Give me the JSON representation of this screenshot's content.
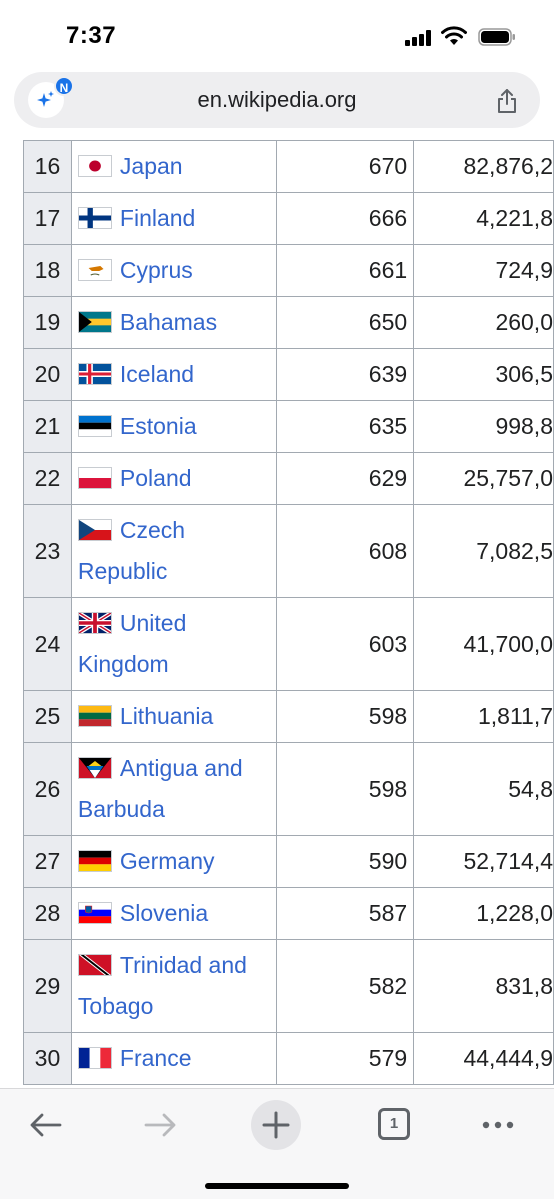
{
  "status": {
    "time": "7:37"
  },
  "browser": {
    "url": "en.wikipedia.org",
    "ai_badge_letter": "N",
    "tab_count": "1"
  },
  "table": {
    "rows": [
      {
        "rank": "16",
        "country": "Japan",
        "flag": "japan-flag-icon",
        "score": "670",
        "population": "82,876,2"
      },
      {
        "rank": "17",
        "country": "Finland",
        "flag": "finland-flag-icon",
        "score": "666",
        "population": "4,221,8"
      },
      {
        "rank": "18",
        "country": "Cyprus",
        "flag": "cyprus-flag-icon",
        "score": "661",
        "population": "724,9"
      },
      {
        "rank": "19",
        "country": "Bahamas",
        "flag": "bahamas-flag-icon",
        "score": "650",
        "population": "260,0"
      },
      {
        "rank": "20",
        "country": "Iceland",
        "flag": "iceland-flag-icon",
        "score": "639",
        "population": "306,5"
      },
      {
        "rank": "21",
        "country": "Estonia",
        "flag": "estonia-flag-icon",
        "score": "635",
        "population": "998,8"
      },
      {
        "rank": "22",
        "country": "Poland",
        "flag": "poland-flag-icon",
        "score": "629",
        "population": "25,757,0"
      },
      {
        "rank": "23",
        "country": "Czech Republic",
        "flag": "czech-republic-flag-icon",
        "score": "608",
        "population": "7,082,5"
      },
      {
        "rank": "24",
        "country": "United Kingdom",
        "flag": "united-kingdom-flag-icon",
        "score": "603",
        "population": "41,700,0"
      },
      {
        "rank": "25",
        "country": "Lithuania",
        "flag": "lithuania-flag-icon",
        "score": "598",
        "population": "1,811,7"
      },
      {
        "rank": "26",
        "country": "Antigua and Barbuda",
        "flag": "antigua-and-barbuda-flag-icon",
        "score": "598",
        "population": "54,8"
      },
      {
        "rank": "27",
        "country": "Germany",
        "flag": "germany-flag-icon",
        "score": "590",
        "population": "52,714,4"
      },
      {
        "rank": "28",
        "country": "Slovenia",
        "flag": "slovenia-flag-icon",
        "score": "587",
        "population": "1,228,0"
      },
      {
        "rank": "29",
        "country": "Trinidad and Tobago",
        "flag": "trinidad-and-tobago-flag-icon",
        "score": "582",
        "population": "831,8"
      },
      {
        "rank": "30",
        "country": "France",
        "flag": "france-flag-icon",
        "score": "579",
        "population": "44,444,9"
      }
    ]
  },
  "colors": {
    "link": "#3366cc",
    "rank_bg": "#eaecf0",
    "border": "#a2a9b1"
  }
}
